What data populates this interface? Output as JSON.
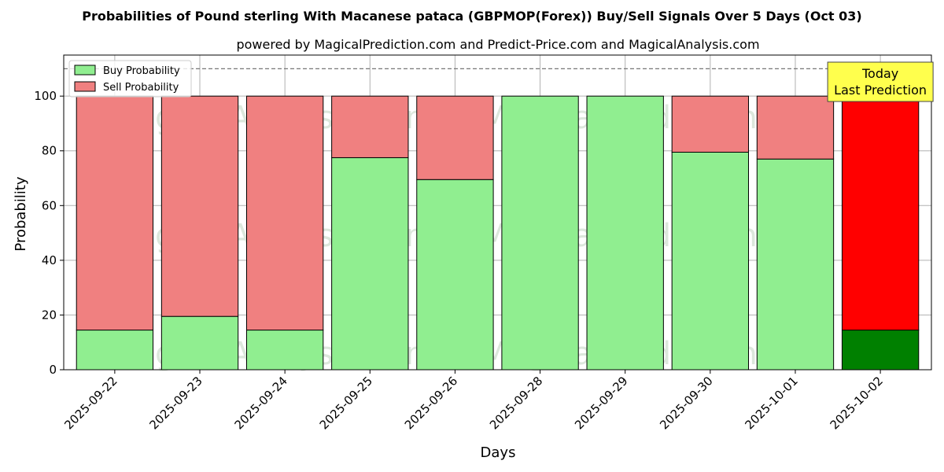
{
  "chart_data": {
    "type": "bar",
    "stacked": true,
    "title": "Probabilities of Pound sterling With Macanese pataca (GBPMOP(Forex)) Buy/Sell Signals Over 5 Days (Oct 03)",
    "subtitle": "powered by MagicalPrediction.com and Predict-Price.com and MagicalAnalysis.com",
    "xlabel": "Days",
    "ylabel": "Probability",
    "ylim": [
      0,
      115
    ],
    "yticks": [
      0,
      20,
      40,
      60,
      80,
      100
    ],
    "reference_line": 110,
    "grid": true,
    "legend_position": "top-left",
    "categories": [
      "2025-09-22",
      "2025-09-23",
      "2025-09-24",
      "2025-09-25",
      "2025-09-26",
      "2025-09-28",
      "2025-09-29",
      "2025-09-30",
      "2025-10-01",
      "2025-10-02"
    ],
    "series": [
      {
        "name": "Buy Probability",
        "color": "#90ee90",
        "values": [
          14.5,
          19.5,
          14.5,
          77.5,
          69.5,
          100,
          100,
          79.5,
          77,
          14.5
        ]
      },
      {
        "name": "Sell Probability",
        "color": "#f08080",
        "values": [
          85.5,
          80.5,
          85.5,
          22.5,
          30.5,
          0,
          0,
          20.5,
          23,
          85.5
        ]
      }
    ],
    "highlight": {
      "index": 9,
      "buy_color": "#008000",
      "sell_color": "#ff0000"
    },
    "annotation": {
      "line1": "Today",
      "line2": "Last Prediction",
      "color": "#ffff4d"
    },
    "watermarks": [
      "MagicalAnalysis.com",
      "MagicalPrediction.com"
    ]
  }
}
